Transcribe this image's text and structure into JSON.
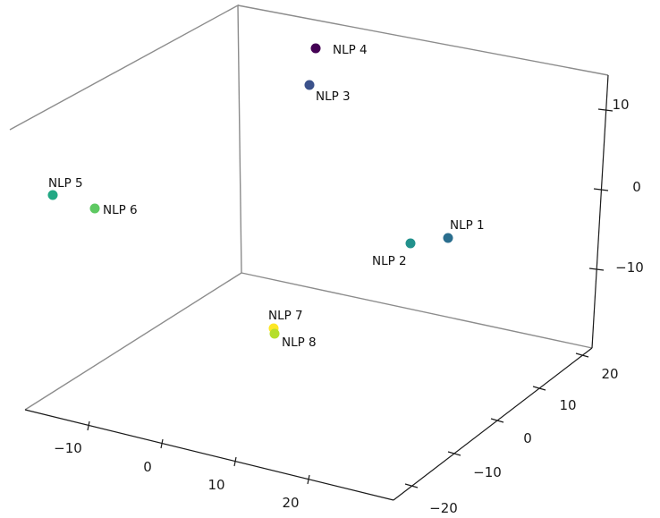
{
  "chart_data": {
    "type": "scatter",
    "projection": "3d",
    "title": "",
    "xlabel": "",
    "ylabel": "",
    "zlabel": "",
    "colormap": "viridis",
    "grid": false,
    "x_ticks": [
      "−10",
      "0",
      "10",
      "20"
    ],
    "y_ticks": [
      "−20",
      "−10",
      "0",
      "10",
      "20"
    ],
    "z_ticks": [
      "−10",
      "0",
      "10"
    ],
    "points": [
      {
        "label": "NLP 1",
        "color": "#2a6e8e"
      },
      {
        "label": "NLP 2",
        "color": "#21918c"
      },
      {
        "label": "NLP 3",
        "color": "#3b528b"
      },
      {
        "label": "NLP 4",
        "color": "#440154"
      },
      {
        "label": "NLP 5",
        "color": "#22a884"
      },
      {
        "label": "NLP 6",
        "color": "#5ec962"
      },
      {
        "label": "NLP 7",
        "color": "#fde725"
      },
      {
        "label": "NLP 8",
        "color": "#b5de2b"
      }
    ]
  }
}
